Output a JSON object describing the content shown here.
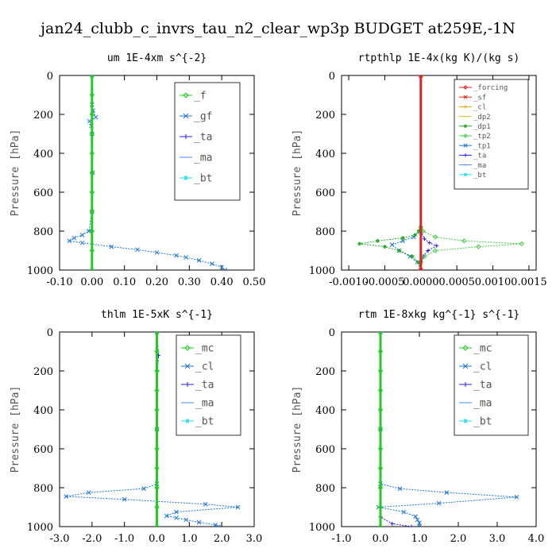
{
  "figure_title": "jan24_clubb_c_invrs_tau_n2_clear_wp3p  BUDGET at259E,-1N",
  "chart_data": [
    {
      "type": "line",
      "title": "um  1E-4xm s^{-2}",
      "ylabel": "Pressure [hPa]",
      "xlim": [
        -0.1,
        0.5
      ],
      "ylim": [
        1000,
        0
      ],
      "xticks": [
        "-0.10",
        "0.00",
        "0.10",
        "0.20",
        "0.30",
        "0.40",
        "0.50"
      ],
      "xtick_values": [
        -0.1,
        0.0,
        0.1,
        0.2,
        0.3,
        0.4,
        0.5
      ],
      "yticks": [
        "0",
        "200",
        "400",
        "600",
        "800",
        "1000"
      ],
      "ytick_values": [
        0,
        200,
        400,
        600,
        800,
        1000
      ],
      "legend_position": "top-right",
      "legend_font": 13,
      "series": [
        {
          "name": "_f",
          "color": "#22cc22",
          "marker": "diamond",
          "points": [
            [
              0,
              0
            ],
            [
              0,
              100
            ],
            [
              0,
              200
            ],
            [
              0,
              300
            ],
            [
              0,
              400
            ],
            [
              0,
              500
            ],
            [
              0,
              600
            ],
            [
              0,
              700
            ],
            [
              0,
              800
            ],
            [
              0,
              900
            ],
            [
              0,
              1000
            ]
          ]
        },
        {
          "name": "_gf",
          "color": "#1f77d4",
          "marker": "x",
          "points": [
            [
              0,
              0
            ],
            [
              0,
              150
            ],
            [
              0.003,
              180
            ],
            [
              0.012,
              215
            ],
            [
              -0.008,
              235
            ],
            [
              -0.002,
              260
            ],
            [
              0,
              300
            ],
            [
              0.002,
              500
            ],
            [
              0,
              700
            ],
            [
              -0.01,
              800
            ],
            [
              -0.03,
              820
            ],
            [
              -0.055,
              835
            ],
            [
              -0.07,
              850
            ],
            [
              -0.03,
              860
            ],
            [
              0.06,
              880
            ],
            [
              0.14,
              895
            ],
            [
              0.2,
              910
            ],
            [
              0.26,
              925
            ],
            [
              0.29,
              935
            ],
            [
              0.33,
              950
            ],
            [
              0.37,
              968
            ],
            [
              0.4,
              985
            ],
            [
              0.41,
              1000
            ]
          ]
        },
        {
          "name": "_ta",
          "color": "#2222dd",
          "marker": "plus",
          "points": [
            [
              0,
              0
            ],
            [
              0,
              500
            ],
            [
              0,
              800
            ],
            [
              0,
              1000
            ]
          ]
        },
        {
          "name": "_ma",
          "color": "#4488ff",
          "marker": "dash",
          "points": [
            [
              0,
              0
            ],
            [
              0,
              1000
            ]
          ]
        },
        {
          "name": "_bt",
          "color": "#22ddee",
          "marker": "asterisk",
          "points": [
            [
              0,
              0
            ],
            [
              0,
              1000
            ]
          ]
        }
      ]
    },
    {
      "type": "line",
      "title": "rtpthlp  1E-4x(kg K)/(kg s)",
      "ylabel": "Pressure [hPa]",
      "xlim": [
        -0.0011,
        0.0016
      ],
      "ylim": [
        1000,
        0
      ],
      "xticks": [
        "-0.0010",
        "-0.0005",
        "0.0000",
        "0.0005",
        "0.0010",
        "0.0015"
      ],
      "xtick_values": [
        -0.001,
        -0.0005,
        0.0,
        0.0005,
        0.001,
        0.0015
      ],
      "yticks": [
        "0",
        "200",
        "400",
        "600",
        "800",
        "1000"
      ],
      "ytick_values": [
        0,
        200,
        400,
        600,
        800,
        1000
      ],
      "legend_position": "top-right",
      "legend_font": 9,
      "series": [
        {
          "name": "_forcing",
          "color": "#dd2222",
          "marker": "diamond",
          "points": [
            [
              0,
              0
            ],
            [
              0,
              1000
            ]
          ]
        },
        {
          "name": "_sf",
          "color": "#cc3311",
          "marker": "x",
          "points": [
            [
              0,
              0
            ],
            [
              0,
              1000
            ]
          ]
        },
        {
          "name": "_cl",
          "color": "#ddaa00",
          "marker": "plus",
          "points": [
            [
              0,
              0
            ],
            [
              0,
              1000
            ]
          ]
        },
        {
          "name": "_dp2",
          "color": "#eebb22",
          "marker": "dash",
          "points": [
            [
              0,
              0
            ],
            [
              0,
              1000
            ]
          ]
        },
        {
          "name": "_dp1",
          "color": "#22aa22",
          "marker": "asterisk",
          "points": [
            [
              0,
              0
            ],
            [
              0,
              780
            ],
            [
              -3e-05,
              800
            ],
            [
              -8e-05,
              820
            ],
            [
              -0.00025,
              835
            ],
            [
              -0.0006,
              850
            ],
            [
              -0.00085,
              865
            ],
            [
              -0.0005,
              880
            ],
            [
              -0.0003,
              900
            ],
            [
              -0.00012,
              930
            ],
            [
              -3e-05,
              960
            ],
            [
              0,
              1000
            ]
          ]
        },
        {
          "name": "_tp2",
          "color": "#44cc44",
          "marker": "diamond",
          "points": [
            [
              0,
              0
            ],
            [
              0,
              780
            ],
            [
              3e-05,
              800
            ],
            [
              0.0002,
              830
            ],
            [
              0.0006,
              850
            ],
            [
              0.0014,
              865
            ],
            [
              0.0008,
              880
            ],
            [
              0.0002,
              900
            ],
            [
              5e-05,
              930
            ],
            [
              0,
              960
            ],
            [
              0,
              1000
            ]
          ]
        },
        {
          "name": "_tp1",
          "color": "#1f77d4",
          "marker": "x",
          "points": [
            [
              0,
              0
            ],
            [
              0,
              800
            ],
            [
              -0.0001,
              830
            ],
            [
              -0.00025,
              850
            ],
            [
              -0.0004,
              870
            ],
            [
              -0.0003,
              900
            ],
            [
              -0.00015,
              930
            ],
            [
              -5e-05,
              960
            ],
            [
              0,
              1000
            ]
          ]
        },
        {
          "name": "_ta",
          "color": "#2222dd",
          "marker": "plus",
          "points": [
            [
              0,
              0
            ],
            [
              0,
              800
            ],
            [
              5e-05,
              840
            ],
            [
              0.00012,
              860
            ],
            [
              0.00022,
              875
            ],
            [
              0.0001,
              900
            ],
            [
              3e-05,
              930
            ],
            [
              0,
              1000
            ]
          ]
        },
        {
          "name": "_ma",
          "color": "#4488ff",
          "marker": "dash",
          "points": [
            [
              0,
              0
            ],
            [
              0,
              1000
            ]
          ]
        },
        {
          "name": "_bt",
          "color": "#22ddee",
          "marker": "asterisk",
          "points": [
            [
              0,
              0
            ],
            [
              0,
              1000
            ]
          ]
        }
      ]
    },
    {
      "type": "line",
      "title": "thlm  1E-5xK s^{-1}",
      "ylabel": "Pressure [hPa]",
      "xlim": [
        -3.0,
        3.0
      ],
      "ylim": [
        1000,
        0
      ],
      "xticks": [
        "-3.0",
        "-2.0",
        "-1.0",
        "0.0",
        "1.0",
        "2.0",
        "3.0"
      ],
      "xtick_values": [
        -3.0,
        -2.0,
        -1.0,
        0.0,
        1.0,
        2.0,
        3.0
      ],
      "yticks": [
        "0",
        "200",
        "400",
        "600",
        "800",
        "1000"
      ],
      "ytick_values": [
        0,
        200,
        400,
        600,
        800,
        1000
      ],
      "legend_position": "top-right",
      "legend_font": 13,
      "series": [
        {
          "name": "_mc",
          "color": "#22cc22",
          "marker": "diamond",
          "points": [
            [
              0,
              0
            ],
            [
              0,
              100
            ],
            [
              0,
              200
            ],
            [
              0,
              300
            ],
            [
              0,
              400
            ],
            [
              0,
              500
            ],
            [
              0,
              600
            ],
            [
              0,
              700
            ],
            [
              0,
              800
            ],
            [
              0,
              900
            ],
            [
              0,
              1000
            ]
          ]
        },
        {
          "name": "_cl",
          "color": "#1f77d4",
          "marker": "x",
          "points": [
            [
              0,
              0
            ],
            [
              0,
              500
            ],
            [
              0,
              780
            ],
            [
              -0.4,
              805
            ],
            [
              -2.1,
              825
            ],
            [
              -2.8,
              845
            ],
            [
              -1.0,
              860
            ],
            [
              1.5,
              885
            ],
            [
              2.5,
              900
            ],
            [
              0.6,
              925
            ],
            [
              0.3,
              945
            ],
            [
              0.6,
              955
            ],
            [
              0.9,
              965
            ],
            [
              1.3,
              978
            ],
            [
              1.8,
              992
            ],
            [
              1.9,
              1000
            ]
          ]
        },
        {
          "name": "_ta",
          "color": "#2222dd",
          "marker": "plus",
          "points": [
            [
              0,
              0
            ],
            [
              0.05,
              120
            ],
            [
              0.02,
              200
            ],
            [
              0,
              800
            ],
            [
              0,
              1000
            ]
          ]
        },
        {
          "name": "_ma",
          "color": "#4488ff",
          "marker": "dash",
          "points": [
            [
              0,
              0
            ],
            [
              0,
              1000
            ]
          ]
        },
        {
          "name": "_bt",
          "color": "#22ddee",
          "marker": "asterisk",
          "points": [
            [
              0,
              0
            ],
            [
              0,
              1000
            ]
          ]
        }
      ]
    },
    {
      "type": "line",
      "title": "rtm  1E-8xkg kg^{-1} s^{-1}",
      "ylabel": "Pressure [hPa]",
      "xlim": [
        -1.0,
        4.0
      ],
      "ylim": [
        1000,
        0
      ],
      "xticks": [
        "-1.0",
        "0.0",
        "1.0",
        "2.0",
        "3.0",
        "4.0"
      ],
      "xtick_values": [
        -1.0,
        0.0,
        1.0,
        2.0,
        3.0,
        4.0
      ],
      "yticks": [
        "0",
        "200",
        "400",
        "600",
        "800",
        "1000"
      ],
      "ytick_values": [
        0,
        200,
        400,
        600,
        800,
        1000
      ],
      "legend_position": "top-right",
      "legend_font": 13,
      "series": [
        {
          "name": "_mc",
          "color": "#22cc22",
          "marker": "diamond",
          "points": [
            [
              0,
              0
            ],
            [
              0,
              100
            ],
            [
              0,
              200
            ],
            [
              0,
              300
            ],
            [
              0,
              400
            ],
            [
              0,
              500
            ],
            [
              0,
              600
            ],
            [
              0,
              700
            ],
            [
              0,
              800
            ],
            [
              0,
              900
            ],
            [
              0,
              1000
            ]
          ]
        },
        {
          "name": "_cl",
          "color": "#1f77d4",
          "marker": "x",
          "points": [
            [
              0,
              0
            ],
            [
              0,
              500
            ],
            [
              0,
              780
            ],
            [
              0.5,
              805
            ],
            [
              1.7,
              825
            ],
            [
              3.5,
              848
            ],
            [
              1.5,
              880
            ],
            [
              -0.05,
              900
            ],
            [
              0.6,
              925
            ],
            [
              0.9,
              948
            ],
            [
              0.95,
              965
            ],
            [
              1.0,
              980
            ],
            [
              1.0,
              1000
            ]
          ]
        },
        {
          "name": "_ta",
          "color": "#2222dd",
          "marker": "plus",
          "points": [
            [
              0,
              0
            ],
            [
              0,
              800
            ],
            [
              0,
              950
            ],
            [
              0.3,
              985
            ],
            [
              0.8,
              1000
            ]
          ]
        },
        {
          "name": "_ma",
          "color": "#4488ff",
          "marker": "dash",
          "points": [
            [
              0,
              0
            ],
            [
              0,
              1000
            ]
          ]
        },
        {
          "name": "_bt",
          "color": "#22ddee",
          "marker": "asterisk",
          "points": [
            [
              0,
              0
            ],
            [
              0,
              1000
            ]
          ]
        }
      ]
    }
  ]
}
